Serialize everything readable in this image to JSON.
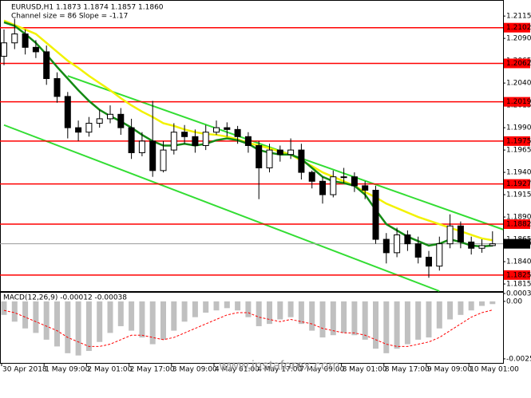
{
  "chart_data": {
    "type": "candlestick",
    "title": "EURUSD,H1  1.1873 1.1874 1.1857 1.1860",
    "subtitle": "Channel size = 86 Slope = -1.17",
    "watermark": "www.instaforex.com",
    "categories": [
      "30 Apr 2018",
      null,
      null,
      null,
      "1 May 09:00",
      null,
      null,
      null,
      "2 May 01:00",
      null,
      null,
      null,
      "2 May 17:00",
      null,
      null,
      null,
      "3 May 09:00",
      null,
      null,
      null,
      "4 May 01:00",
      null,
      null,
      null,
      "4 May 17:00",
      null,
      null,
      null,
      "7 May 09:00",
      null,
      null,
      null,
      "8 May 01:00",
      null,
      null,
      null,
      "8 May 17:00",
      null,
      null,
      null,
      "9 May 09:00",
      null,
      null,
      null,
      "10 May 01:00",
      null,
      null
    ],
    "open": [
      1.207,
      1.2085,
      1.2095,
      1.208,
      1.2075,
      1.2045,
      1.2025,
      1.199,
      1.1985,
      1.1995,
      1.2,
      1.2005,
      1.199,
      1.1962,
      1.1975,
      1.1942,
      1.1965,
      1.1985,
      1.198,
      1.197,
      1.1985,
      1.199,
      1.1988,
      1.198,
      1.197,
      1.1945,
      1.1965,
      1.196,
      1.1965,
      1.194,
      1.193,
      1.1915,
      1.1935,
      1.1935,
      1.1925,
      1.192,
      1.1865,
      1.185,
      1.187,
      1.186,
      1.1845,
      1.1835,
      1.186,
      1.188,
      1.1862,
      1.1855,
      1.1858
    ],
    "high": [
      1.21,
      1.2112,
      1.21,
      1.2088,
      1.2082,
      1.2052,
      1.203,
      1.1998,
      1.2002,
      1.201,
      1.2015,
      1.2012,
      1.2,
      1.1985,
      1.202,
      1.1975,
      1.1995,
      1.1993,
      1.1988,
      1.1993,
      1.1998,
      1.1996,
      1.1992,
      1.1985,
      1.1975,
      1.1972,
      1.197,
      1.1978,
      1.1972,
      1.1942,
      1.1935,
      1.1942,
      1.1945,
      1.194,
      1.193,
      1.1925,
      1.1872,
      1.1878,
      1.1875,
      1.1868,
      1.1852,
      1.1868,
      1.1893,
      1.1885,
      1.1868,
      1.1865,
      1.1874
    ],
    "low": [
      1.206,
      1.2078,
      1.2072,
      1.2068,
      1.2038,
      1.2018,
      1.1978,
      1.1975,
      1.198,
      1.199,
      1.1995,
      1.1982,
      1.1955,
      1.1958,
      1.1935,
      1.194,
      1.196,
      1.1972,
      1.1962,
      1.1965,
      1.1982,
      1.198,
      1.1972,
      1.1962,
      1.191,
      1.194,
      1.1952,
      1.1955,
      1.1932,
      1.1922,
      1.1905,
      1.1912,
      1.1928,
      1.1918,
      1.191,
      1.186,
      1.1838,
      1.1845,
      1.1852,
      1.1838,
      1.1822,
      1.183,
      1.1855,
      1.1855,
      1.1848,
      1.185,
      1.1857
    ],
    "close": [
      1.2085,
      1.2095,
      1.208,
      1.2075,
      1.2045,
      1.2025,
      1.199,
      1.1985,
      1.1995,
      1.2,
      1.2005,
      1.199,
      1.1962,
      1.1975,
      1.1942,
      1.1965,
      1.1985,
      1.198,
      1.197,
      1.1985,
      1.199,
      1.1988,
      1.198,
      1.197,
      1.1945,
      1.1965,
      1.196,
      1.1965,
      1.194,
      1.193,
      1.1915,
      1.1935,
      1.1935,
      1.1925,
      1.192,
      1.1865,
      1.185,
      1.187,
      1.186,
      1.1845,
      1.1835,
      1.186,
      1.188,
      1.1862,
      1.1855,
      1.1858,
      1.186
    ],
    "series": [
      {
        "color": "#f2f200",
        "values": [
          1.211,
          1.2105,
          1.21,
          1.2095,
          1.2085,
          1.2075,
          1.2065,
          1.2057,
          1.2048,
          1.204,
          1.2032,
          1.2023,
          1.2015,
          1.2008,
          1.2002,
          1.1995,
          1.1992,
          1.1988,
          1.1985,
          1.1983,
          1.1982,
          1.198,
          1.1977,
          1.1973,
          1.197,
          1.1967,
          1.1963,
          1.196,
          1.1953,
          1.1947,
          1.194,
          1.1935,
          1.193,
          1.1925,
          1.1918,
          1.1912,
          1.1905,
          1.19,
          1.1895,
          1.189,
          1.1886,
          1.1882,
          1.1878,
          1.1874,
          1.187,
          1.1866,
          1.1864
        ]
      },
      {
        "color": "#148a14",
        "values": [
          1.2108,
          1.2104,
          1.2095,
          1.2085,
          1.2072,
          1.2058,
          1.2045,
          1.2032,
          1.202,
          1.201,
          1.2003,
          1.1997,
          1.199,
          1.1982,
          1.1975,
          1.197,
          1.197,
          1.1972,
          1.197,
          1.1972,
          1.1976,
          1.1978,
          1.1976,
          1.1972,
          1.1965,
          1.1962,
          1.196,
          1.196,
          1.1955,
          1.1945,
          1.1935,
          1.193,
          1.1928,
          1.1925,
          1.1915,
          1.1898,
          1.1882,
          1.1875,
          1.1868,
          1.1863,
          1.1858,
          1.186,
          1.1865,
          1.1862,
          1.1858,
          1.1857,
          1.1858
        ]
      }
    ],
    "channels": [
      {
        "color": "#33dd33",
        "x": [
          6,
          47
        ],
        "y": [
          1.2048,
          1.1876
        ]
      },
      {
        "color": "#33dd33",
        "x": [
          0,
          41
        ],
        "y": [
          1.1993,
          1.1807
        ]
      }
    ],
    "levels": [
      1.2102,
      1.2062,
      1.2019,
      1.1975,
      1.1927,
      1.1882,
      1.1825
    ],
    "level_color": "#ff0000",
    "current": {
      "value": 1.186,
      "label": "1.1860"
    },
    "ylim": [
      1.1807,
      1.2133
    ],
    "yticks": [
      1.2115,
      {
        "value": 1.209,
        "label": "1.2090"
      },
      1.2065,
      {
        "value": 1.204,
        "label": "1.2040"
      },
      1.2015,
      {
        "value": 1.199,
        "label": "1.1990"
      },
      1.1965,
      {
        "value": 1.194,
        "label": "1.1940"
      },
      1.1915,
      {
        "value": 1.189,
        "label": "1.1890"
      },
      1.1865,
      {
        "value": 1.184,
        "label": "1.1840"
      },
      1.1815
    ],
    "macd": {
      "label": "MACD(12,26,9) -0.00012 -0.00038",
      "hist_color": "#c0c0c0",
      "signal_color": "#ff0000",
      "histogram": [
        -0.0006,
        -0.0009,
        -0.0012,
        -0.0014,
        -0.0017,
        -0.002,
        -0.0023,
        -0.0024,
        -0.0022,
        -0.0018,
        -0.0014,
        -0.0011,
        -0.0013,
        -0.0016,
        -0.0019,
        -0.0017,
        -0.0013,
        -0.0009,
        -0.0007,
        -0.0005,
        -0.0004,
        -0.0003,
        -0.0004,
        -0.0007,
        -0.0011,
        -0.001,
        -0.0008,
        -0.0007,
        -0.001,
        -0.0013,
        -0.0016,
        -0.0015,
        -0.0014,
        -0.0015,
        -0.0017,
        -0.0021,
        -0.0023,
        -0.0021,
        -0.0019,
        -0.0017,
        -0.0016,
        -0.0012,
        -0.0008,
        -0.0006,
        -0.0004,
        -0.0002,
        -0.00012
      ],
      "signal": [
        -0.0004,
        -0.0005,
        -0.0007,
        -0.0009,
        -0.0011,
        -0.0013,
        -0.0016,
        -0.0018,
        -0.002,
        -0.002,
        -0.0019,
        -0.0017,
        -0.0015,
        -0.0015,
        -0.0016,
        -0.0017,
        -0.0016,
        -0.0014,
        -0.0012,
        -0.001,
        -0.0008,
        -0.0006,
        -0.0005,
        -0.0005,
        -0.0007,
        -0.0008,
        -0.0009,
        -0.0008,
        -0.0009,
        -0.001,
        -0.0012,
        -0.0013,
        -0.0014,
        -0.0014,
        -0.0015,
        -0.0017,
        -0.0019,
        -0.002,
        -0.002,
        -0.0019,
        -0.0018,
        -0.0016,
        -0.0013,
        -0.001,
        -0.0007,
        -0.0005,
        -0.00038
      ],
      "ylim": [
        -0.00273,
        0.00042
      ],
      "yticks": [
        0.00035,
        {
          "value": 0,
          "label": "0.00"
        },
        -0.00255
      ]
    }
  }
}
